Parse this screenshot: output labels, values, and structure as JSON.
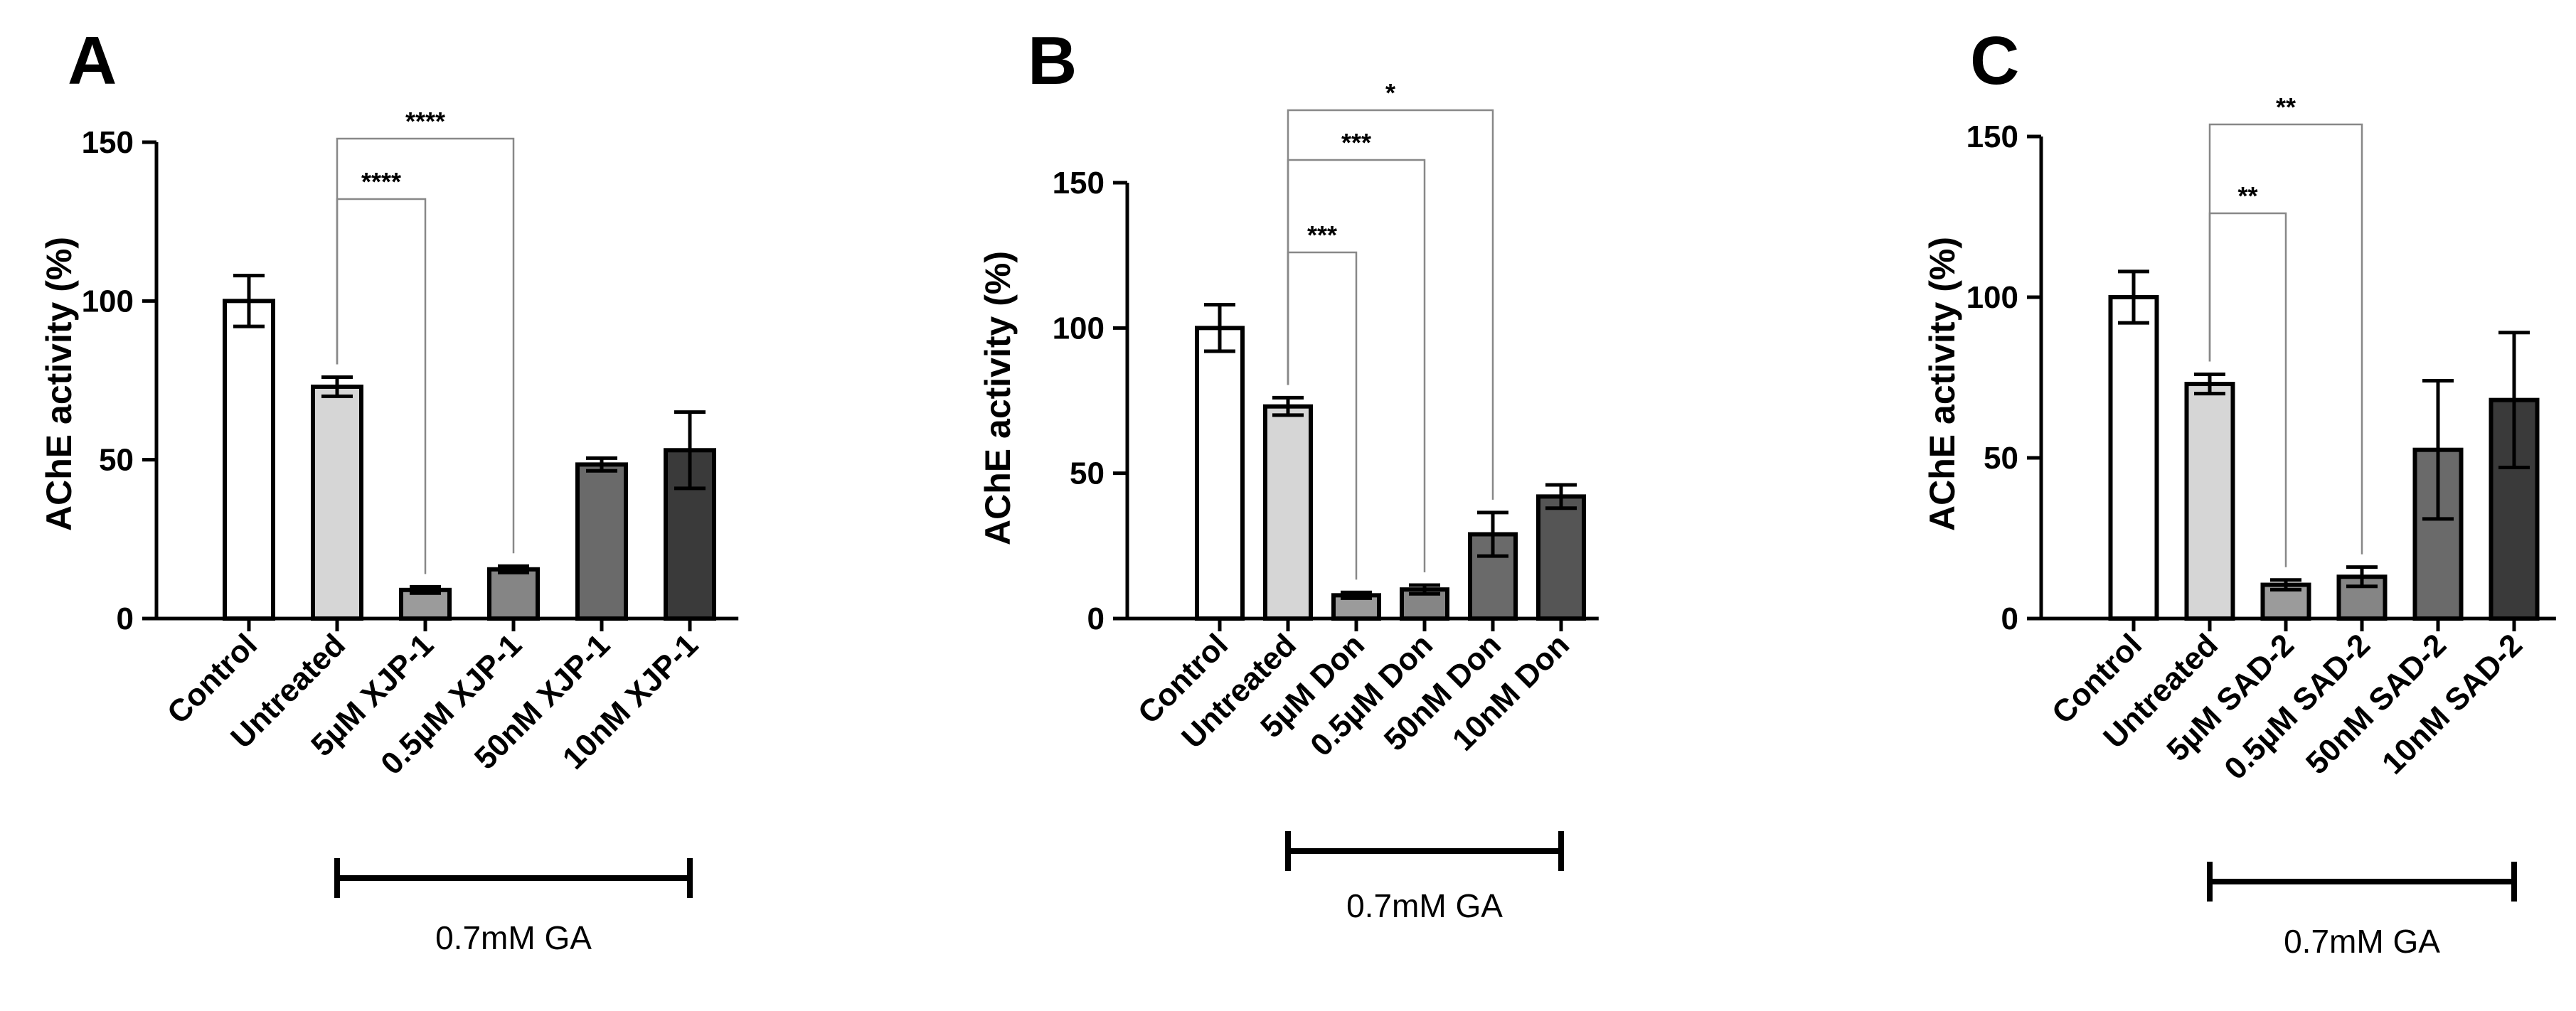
{
  "chart_data": [
    {
      "type": "bar",
      "panel_label": "A",
      "ylabel": "AChE activity (%)",
      "ylim": [
        0,
        150
      ],
      "yticks": [
        "0",
        "50",
        "100",
        "150"
      ],
      "categories": [
        "Control",
        "Untreated",
        "5µM XJP-1",
        "0.5µM XJP-1",
        "50nM XJP-1",
        "10nM XJP-1"
      ],
      "values": [
        100,
        73,
        9,
        15.5,
        48.5,
        53
      ],
      "errors": [
        8,
        3,
        1,
        1,
        2,
        12
      ],
      "bar_colors": [
        "#ffffff",
        "#d6d6d6",
        "#9b9b9b",
        "#858585",
        "#6a6a6a",
        "#3a3a3a"
      ],
      "treatment_label": "0.7mM  GA",
      "significance": [
        {
          "from": 1,
          "to": 3,
          "label": "****"
        },
        {
          "from": 1,
          "to": 2,
          "label": "****"
        }
      ]
    },
    {
      "type": "bar",
      "panel_label": "B",
      "ylabel": "AChE activity (%)",
      "ylim": [
        0,
        150
      ],
      "yticks": [
        "0",
        "50",
        "100",
        "150"
      ],
      "categories": [
        "Control",
        "Untreated",
        "5µM Don",
        "0.5µM Don",
        "50nM Don",
        "10nM Don"
      ],
      "values": [
        100,
        73,
        8,
        10,
        29,
        42
      ],
      "errors": [
        8,
        3,
        1,
        1.5,
        7.5,
        4
      ],
      "bar_colors": [
        "#ffffff",
        "#d6d6d6",
        "#9b9b9b",
        "#858585",
        "#6a6a6a",
        "#555555"
      ],
      "treatment_label": "0.7mM  GA",
      "significance": [
        {
          "from": 1,
          "to": 4,
          "label": "*"
        },
        {
          "from": 1,
          "to": 3,
          "label": "***"
        },
        {
          "from": 1,
          "to": 2,
          "label": "***"
        }
      ]
    },
    {
      "type": "bar",
      "panel_label": "C",
      "ylabel": "AChE activity (%)",
      "ylim": [
        0,
        150
      ],
      "yticks": [
        "0",
        "50",
        "100",
        "150"
      ],
      "categories": [
        "Control",
        "Untreated",
        "5µM SAD-2",
        "0.5µM SAD-2",
        "50nM SAD-2",
        "10nM SAD-2"
      ],
      "values": [
        100,
        73,
        10.5,
        13,
        52.5,
        68
      ],
      "errors": [
        8,
        3,
        1.5,
        3,
        21.5,
        21
      ],
      "bar_colors": [
        "#ffffff",
        "#d6d6d6",
        "#9b9b9b",
        "#858585",
        "#6a6a6a",
        "#3a3a3a"
      ],
      "treatment_label": "0.7mM  GA",
      "significance": [
        {
          "from": 1,
          "to": 3,
          "label": "**"
        },
        {
          "from": 1,
          "to": 2,
          "label": "**"
        }
      ]
    }
  ]
}
